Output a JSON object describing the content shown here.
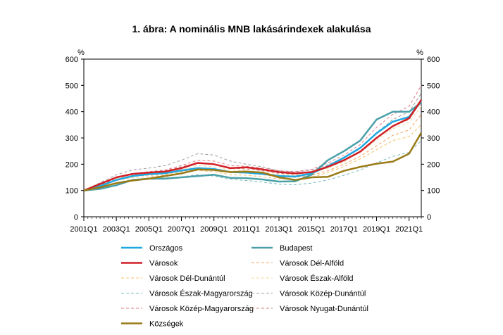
{
  "title": "1. ábra: A nominális MNB lakásárindexek alakulása",
  "chart_data": {
    "type": "line",
    "title": "1. ábra: A nominális MNB lakásárindexek alakulása",
    "ylabel_left": "%",
    "ylabel_right": "%",
    "ylim": [
      0,
      600
    ],
    "yticks": [
      0,
      100,
      200,
      300,
      400,
      500,
      600
    ],
    "x_ticklabels": [
      "2001Q1",
      "2003Q1",
      "2005Q1",
      "2007Q1",
      "2009Q1",
      "2011Q1",
      "2013Q1",
      "2015Q1",
      "2017Q1",
      "2019Q1",
      "2021Q1"
    ],
    "x": [
      2001.0,
      2002.0,
      2003.0,
      2004.0,
      2005.0,
      2006.0,
      2007.0,
      2008.0,
      2009.0,
      2010.0,
      2011.0,
      2012.0,
      2013.0,
      2014.0,
      2015.0,
      2016.0,
      2017.0,
      2018.0,
      2019.0,
      2020.0,
      2021.0,
      2021.75
    ],
    "xlim": [
      2001.0,
      2021.75
    ],
    "grid": false,
    "legend_position": "bottom",
    "series": [
      {
        "name": "Országos",
        "color": "#1ea7e1",
        "style": "solid",
        "width": 2.5,
        "values": [
          100,
          117,
          140,
          155,
          162,
          166,
          176,
          185,
          182,
          170,
          168,
          163,
          155,
          153,
          165,
          192,
          225,
          262,
          318,
          362,
          380,
          440
        ]
      },
      {
        "name": "Budapest",
        "color": "#4aa0a8",
        "style": "solid",
        "width": 2.5,
        "values": [
          100,
          106,
          120,
          140,
          145,
          145,
          150,
          155,
          160,
          148,
          147,
          142,
          134,
          135,
          160,
          215,
          250,
          290,
          370,
          400,
          400,
          435
        ]
      },
      {
        "name": "Városok",
        "color": "#d11f26",
        "style": "solid",
        "width": 2.5,
        "values": [
          100,
          125,
          150,
          163,
          168,
          172,
          185,
          205,
          200,
          185,
          188,
          180,
          170,
          165,
          170,
          190,
          215,
          248,
          300,
          345,
          375,
          445
        ]
      },
      {
        "name": "Városok Dél-Alföld",
        "color": "#f2a35e",
        "style": "dashed",
        "width": 1,
        "values": [
          100,
          118,
          142,
          155,
          158,
          162,
          172,
          182,
          178,
          168,
          166,
          160,
          152,
          150,
          158,
          175,
          200,
          230,
          270,
          310,
          330,
          390
        ]
      },
      {
        "name": "Városok Dél-Dunántúl",
        "color": "#f5c26e",
        "style": "dashed",
        "width": 1,
        "values": [
          100,
          115,
          138,
          150,
          152,
          158,
          166,
          176,
          172,
          160,
          158,
          152,
          144,
          142,
          150,
          168,
          192,
          220,
          255,
          290,
          305,
          350
        ]
      },
      {
        "name": "Városok Észak-Alföld",
        "color": "#f7d89a",
        "style": "dashed",
        "width": 1,
        "values": [
          100,
          120,
          145,
          160,
          165,
          170,
          180,
          195,
          190,
          178,
          175,
          168,
          160,
          158,
          165,
          185,
          210,
          245,
          290,
          335,
          360,
          420
        ]
      },
      {
        "name": "Városok Észak-Magyarország",
        "color": "#79b8bd",
        "style": "dashed",
        "width": 1,
        "values": [
          100,
          112,
          130,
          142,
          146,
          148,
          152,
          160,
          155,
          142,
          138,
          132,
          124,
          122,
          128,
          140,
          158,
          178,
          205,
          230,
          245,
          290
        ]
      },
      {
        "name": "Városok Közép-Dunántúl",
        "color": "#9e9e9e",
        "style": "dashed",
        "width": 1,
        "values": [
          100,
          130,
          160,
          178,
          185,
          195,
          215,
          240,
          235,
          212,
          200,
          190,
          175,
          170,
          178,
          198,
          225,
          262,
          320,
          370,
          400,
          470
        ]
      },
      {
        "name": "Városok Közép-Magyarország",
        "color": "#e07a8a",
        "style": "dashed",
        "width": 1,
        "values": [
          100,
          122,
          148,
          165,
          172,
          178,
          195,
          215,
          212,
          195,
          192,
          185,
          175,
          172,
          180,
          205,
          235,
          275,
          340,
          390,
          420,
          500
        ]
      },
      {
        "name": "Városok Nyugat-Dunántúl",
        "color": "#c9826b",
        "style": "dashed",
        "width": 1,
        "values": [
          100,
          120,
          148,
          162,
          170,
          175,
          190,
          205,
          200,
          185,
          182,
          175,
          165,
          162,
          170,
          190,
          218,
          250,
          300,
          345,
          370,
          440
        ]
      },
      {
        "name": "Községek",
        "color": "#9a7a17",
        "style": "solid",
        "width": 2.5,
        "values": [
          100,
          112,
          128,
          138,
          145,
          155,
          165,
          180,
          178,
          170,
          172,
          168,
          150,
          140,
          150,
          152,
          175,
          190,
          202,
          210,
          240,
          320
        ]
      }
    ]
  }
}
